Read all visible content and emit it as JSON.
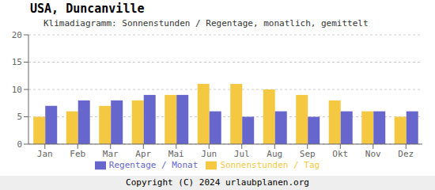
{
  "chart_data": {
    "type": "bar",
    "title": "USA,  Duncanville",
    "subtitle": "Klimadiagramm: Sonnenstunden / Regentage, monatlich, gemittelt",
    "categories": [
      "Jan",
      "Feb",
      "Mar",
      "Apr",
      "Mai",
      "Jun",
      "Jul",
      "Aug",
      "Sep",
      "Okt",
      "Nov",
      "Dez"
    ],
    "series": [
      {
        "name": "Sonnenstunden / Tag",
        "color": "#F5C842",
        "values": [
          5,
          6,
          7,
          8,
          9,
          11,
          11,
          10,
          9,
          8,
          6,
          5
        ]
      },
      {
        "name": "Regentage / Monat",
        "color": "#6666CC",
        "values": [
          7,
          8,
          8,
          9,
          9,
          6,
          5,
          6,
          5,
          6,
          6,
          6
        ]
      }
    ],
    "ylim": [
      0,
      20
    ],
    "yticks": [
      0,
      5,
      10,
      15,
      20
    ],
    "grid": true,
    "legend": "bottom",
    "annotations": [
      "Copyright (C) 2024 urlaubplanen.org"
    ]
  }
}
